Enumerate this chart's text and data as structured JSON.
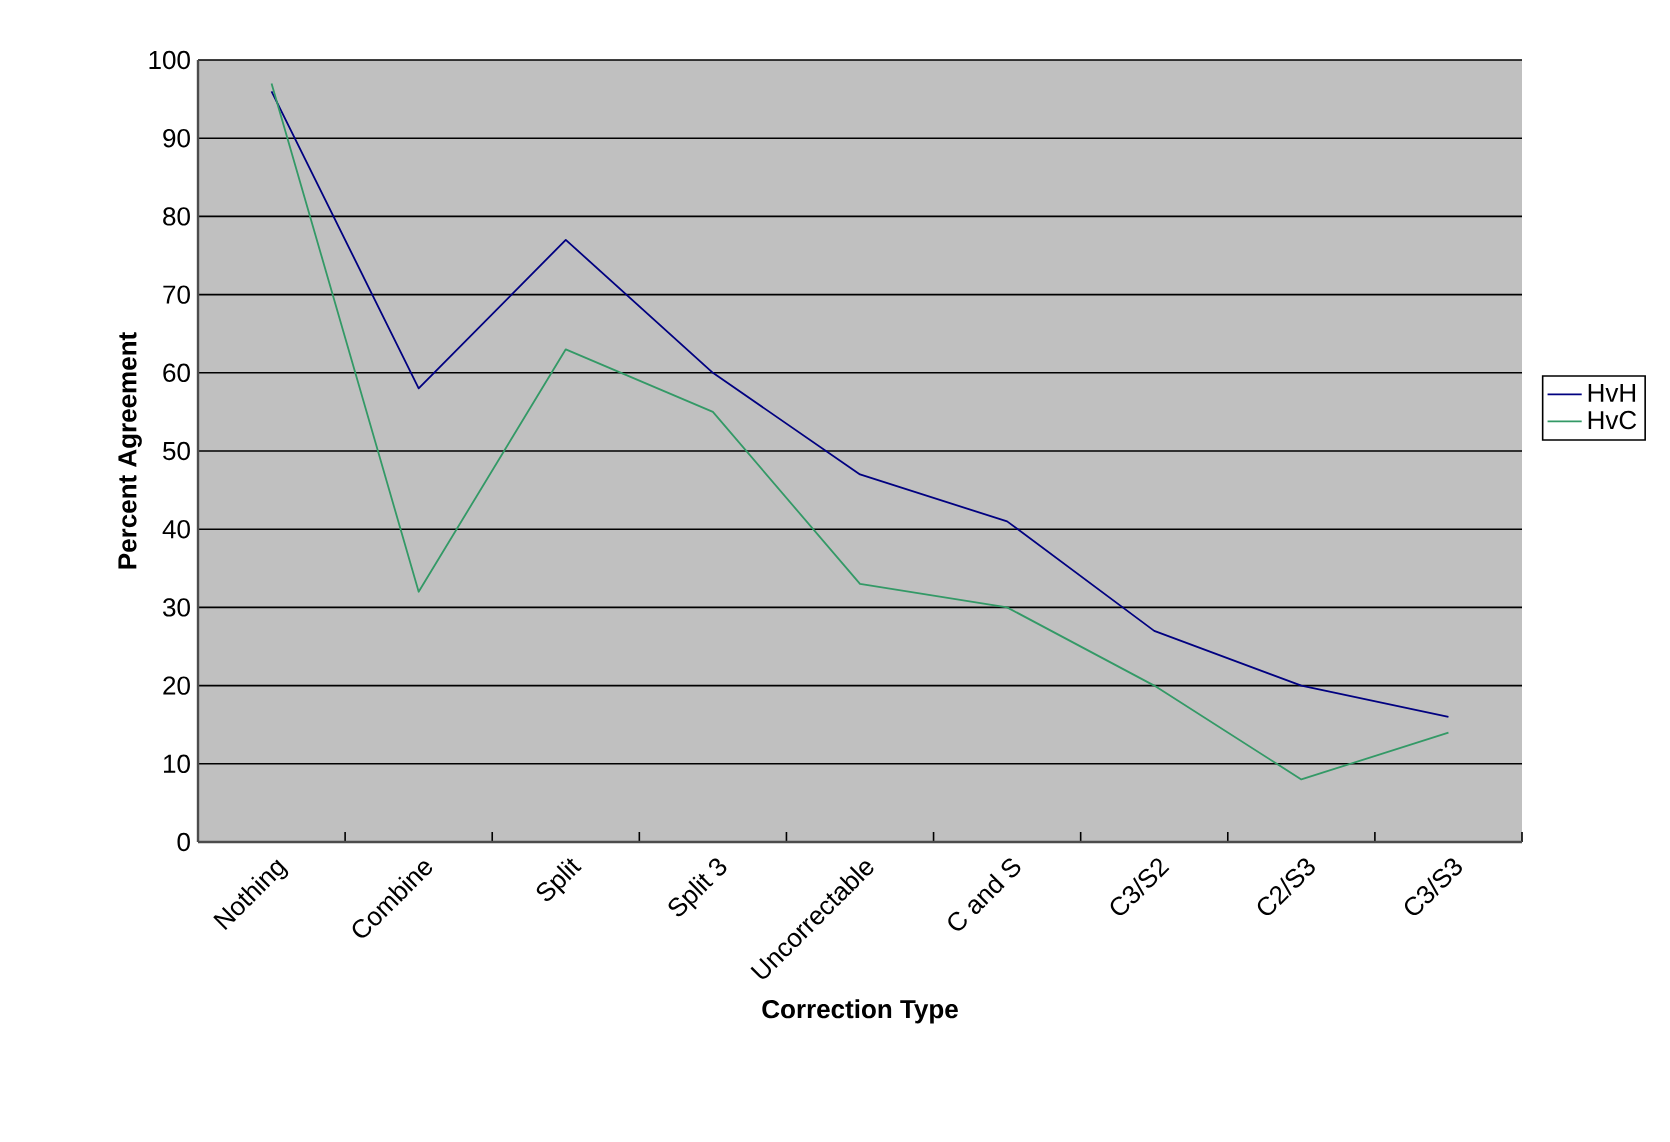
{
  "chart_data": {
    "type": "line",
    "xlabel": "Correction Type",
    "ylabel": "Percent Agreement",
    "categories": [
      "Nothing",
      "Combine",
      "Split",
      "Split 3",
      "Uncorrectable",
      "C and S",
      "C3/S2",
      "C2/S3",
      "C3/S3"
    ],
    "series": [
      {
        "name": "HvH",
        "color": "#000080",
        "values": [
          96,
          58,
          77,
          60,
          47,
          41,
          27,
          20,
          16
        ]
      },
      {
        "name": "HvC",
        "color": "#339966",
        "values": [
          97,
          32,
          63,
          55,
          33,
          30,
          20,
          8,
          14
        ]
      }
    ],
    "ylim": [
      0,
      100
    ],
    "yticks": [
      0,
      10,
      20,
      30,
      40,
      50,
      60,
      70,
      80,
      90,
      100
    ],
    "grid": "y",
    "legend": "right",
    "marker": "none",
    "line_style": "solid"
  }
}
